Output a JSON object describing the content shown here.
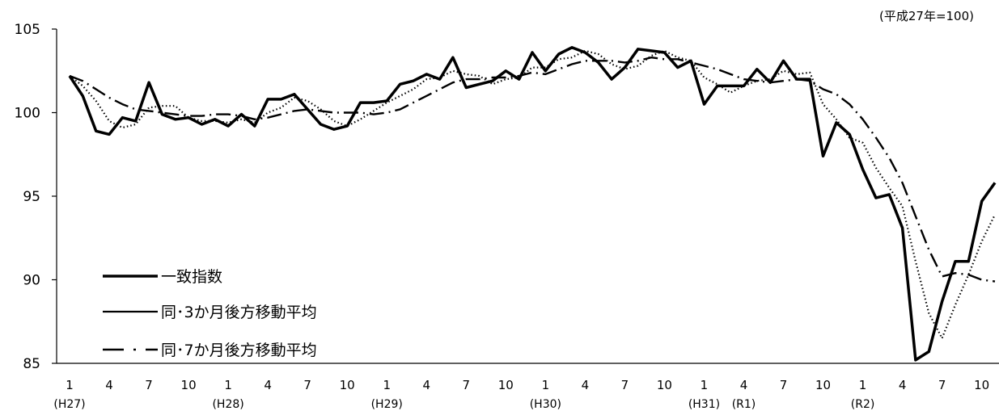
{
  "chart_data": {
    "type": "line",
    "note": "(平成27年=100)",
    "ylim": [
      85,
      105
    ],
    "yticks": [
      85,
      90,
      95,
      100,
      105
    ],
    "x_tick_labels": [
      {
        "index": 0,
        "month": "1",
        "era": "(H27)"
      },
      {
        "index": 3,
        "month": "4",
        "era": ""
      },
      {
        "index": 6,
        "month": "7",
        "era": ""
      },
      {
        "index": 9,
        "month": "10",
        "era": ""
      },
      {
        "index": 12,
        "month": "1",
        "era": "(H28)"
      },
      {
        "index": 15,
        "month": "4",
        "era": ""
      },
      {
        "index": 18,
        "month": "7",
        "era": ""
      },
      {
        "index": 21,
        "month": "10",
        "era": ""
      },
      {
        "index": 24,
        "month": "1",
        "era": "(H29)"
      },
      {
        "index": 27,
        "month": "4",
        "era": ""
      },
      {
        "index": 30,
        "month": "7",
        "era": ""
      },
      {
        "index": 33,
        "month": "10",
        "era": ""
      },
      {
        "index": 36,
        "month": "1",
        "era": "(H30)"
      },
      {
        "index": 39,
        "month": "4",
        "era": ""
      },
      {
        "index": 42,
        "month": "7",
        "era": ""
      },
      {
        "index": 45,
        "month": "10",
        "era": ""
      },
      {
        "index": 48,
        "month": "1",
        "era": "(H31)"
      },
      {
        "index": 51,
        "month": "4",
        "era": "(R1)"
      },
      {
        "index": 54,
        "month": "7",
        "era": ""
      },
      {
        "index": 57,
        "month": "10",
        "era": ""
      },
      {
        "index": 60,
        "month": "1",
        "era": "(R2)"
      },
      {
        "index": 63,
        "month": "4",
        "era": ""
      },
      {
        "index": 66,
        "month": "7",
        "era": ""
      },
      {
        "index": 69,
        "month": "10",
        "era": ""
      }
    ],
    "series": [
      {
        "name": "一致指数",
        "style": "solid",
        "values": [
          102.2,
          101.0,
          98.9,
          98.7,
          99.7,
          99.5,
          101.8,
          99.9,
          99.6,
          99.7,
          99.3,
          99.6,
          99.2,
          99.9,
          99.2,
          100.8,
          100.8,
          101.1,
          100.2,
          99.3,
          99.0,
          99.2,
          100.6,
          100.6,
          100.7,
          101.7,
          101.9,
          102.3,
          102.0,
          103.3,
          101.5,
          101.7,
          101.9,
          102.5,
          102.0,
          103.6,
          102.5,
          103.5,
          103.9,
          103.6,
          103.0,
          102.0,
          102.7,
          103.8,
          103.7,
          103.6,
          102.7,
          103.1,
          100.5,
          101.6,
          101.6,
          101.6,
          102.6,
          101.8,
          103.1,
          102.0,
          102.0,
          97.4,
          99.4,
          98.7,
          96.6,
          94.9,
          95.1,
          93.1,
          85.2,
          85.7,
          88.7,
          91.1,
          91.1,
          94.7,
          95.8
        ]
      },
      {
        "name": "同･3か月後方移動平均",
        "style": "dotted",
        "values": [
          102.2,
          101.6,
          100.7,
          99.5,
          99.1,
          99.3,
          100.3,
          100.4,
          100.4,
          99.7,
          99.5,
          99.5,
          99.4,
          99.6,
          99.4,
          100.0,
          100.3,
          100.9,
          100.7,
          100.2,
          99.5,
          99.2,
          99.6,
          100.1,
          100.6,
          101.0,
          101.4,
          102.0,
          102.1,
          102.5,
          102.3,
          102.2,
          101.7,
          102.0,
          102.1,
          102.7,
          102.7,
          103.2,
          103.3,
          103.7,
          103.5,
          102.9,
          102.6,
          102.8,
          103.4,
          103.7,
          103.3,
          103.1,
          102.1,
          101.7,
          101.2,
          101.6,
          101.9,
          102.0,
          102.5,
          102.3,
          102.4,
          100.5,
          99.6,
          98.5,
          98.2,
          96.7,
          95.5,
          94.4,
          91.1,
          88.0,
          86.5,
          88.5,
          90.3,
          92.3,
          93.9
        ]
      },
      {
        "name": "同･7か月後方移動平均",
        "style": "dashdot",
        "values": [
          102.2,
          101.9,
          101.4,
          100.9,
          100.5,
          100.2,
          100.1,
          100.0,
          99.9,
          99.8,
          99.8,
          99.9,
          99.9,
          99.8,
          99.6,
          99.7,
          99.9,
          100.1,
          100.2,
          100.1,
          100.0,
          100.0,
          100.0,
          99.9,
          100.0,
          100.2,
          100.6,
          101.0,
          101.4,
          101.8,
          102.0,
          102.0,
          102.1,
          102.1,
          102.2,
          102.4,
          102.3,
          102.6,
          102.9,
          103.1,
          103.1,
          103.1,
          103.0,
          103.1,
          103.3,
          103.2,
          103.2,
          103.0,
          102.8,
          102.6,
          102.3,
          102.0,
          101.9,
          101.8,
          101.9,
          102.0,
          101.9,
          101.4,
          101.1,
          100.5,
          99.6,
          98.5,
          97.3,
          95.8,
          93.8,
          91.8,
          90.2,
          90.4,
          90.3,
          90.0,
          89.9
        ]
      }
    ]
  }
}
